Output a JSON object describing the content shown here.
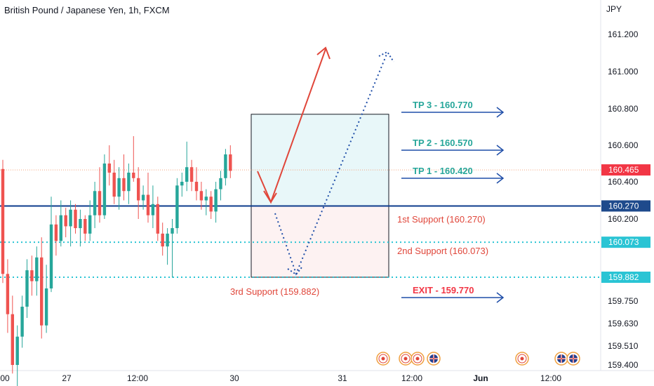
{
  "header": {
    "title": "British Pound / Japanese Yen, 1h, FXCM"
  },
  "chart_data": {
    "type": "candlestick",
    "currency": "JPY",
    "y_ticks": [
      "161.200",
      "161.000",
      "160.800",
      "160.600",
      "160.400",
      "160.200",
      "159.750",
      "159.630",
      "159.510",
      "159.400"
    ],
    "x_ticks": [
      "00",
      "27",
      "12:00",
      "30",
      "31",
      "12:00",
      "Jun",
      "12:00"
    ],
    "last_price": "160.465",
    "price_tags": [
      {
        "label": "160.465",
        "color": "#f23645"
      },
      {
        "label": "160.270",
        "color": "#1e4a8c"
      },
      {
        "label": "160.073",
        "color": "#2ac4d4"
      },
      {
        "label": "159.882",
        "color": "#2ac4d4"
      }
    ],
    "levels": [
      {
        "name": "1st Support",
        "value": 160.27,
        "label": "1st Support (160.270)",
        "color": "#0d3b8c",
        "style": "solid"
      },
      {
        "name": "2nd Support",
        "value": 160.073,
        "label": "2nd Support (160.073)",
        "color": "#2ac4d4",
        "style": "dotted"
      },
      {
        "name": "3rd Support",
        "value": 159.882,
        "label": "3rd Support (159.882)",
        "color": "#2ac4d4",
        "style": "dotted"
      }
    ],
    "targets": [
      {
        "label": "TP 3 - 160.770",
        "value": 160.77,
        "color": "#26a69a"
      },
      {
        "label": "TP 2 - 160.570",
        "value": 160.57,
        "color": "#26a69a"
      },
      {
        "label": "TP 1 - 160.420",
        "value": 160.42,
        "color": "#26a69a"
      },
      {
        "label": "EXIT - 159.770",
        "value": 159.77,
        "color": "#f23645"
      }
    ],
    "candles": [
      {
        "o": 160.47,
        "h": 160.52,
        "l": 159.85,
        "c": 159.9
      },
      {
        "o": 159.9,
        "h": 159.98,
        "l": 159.58,
        "c": 159.68
      },
      {
        "o": 159.68,
        "h": 159.78,
        "l": 159.35,
        "c": 159.4
      },
      {
        "o": 159.4,
        "h": 159.62,
        "l": 159.22,
        "c": 159.56
      },
      {
        "o": 159.56,
        "h": 159.78,
        "l": 159.5,
        "c": 159.72
      },
      {
        "o": 159.72,
        "h": 159.98,
        "l": 159.66,
        "c": 159.92
      },
      {
        "o": 159.92,
        "h": 160.0,
        "l": 159.78,
        "c": 159.86
      },
      {
        "o": 159.86,
        "h": 160.05,
        "l": 159.78,
        "c": 159.99
      },
      {
        "o": 159.99,
        "h": 160.1,
        "l": 159.55,
        "c": 159.62
      },
      {
        "o": 159.62,
        "h": 159.95,
        "l": 159.58,
        "c": 159.82
      },
      {
        "o": 159.82,
        "h": 160.32,
        "l": 159.8,
        "c": 160.17
      },
      {
        "o": 160.17,
        "h": 160.22,
        "l": 160.0,
        "c": 160.08
      },
      {
        "o": 160.08,
        "h": 160.3,
        "l": 160.05,
        "c": 160.22
      },
      {
        "o": 160.22,
        "h": 160.26,
        "l": 160.1,
        "c": 160.16
      },
      {
        "o": 160.16,
        "h": 160.3,
        "l": 160.05,
        "c": 160.25
      },
      {
        "o": 160.25,
        "h": 160.28,
        "l": 160.12,
        "c": 160.15
      },
      {
        "o": 160.15,
        "h": 160.25,
        "l": 160.05,
        "c": 160.2
      },
      {
        "o": 160.2,
        "h": 160.22,
        "l": 160.08,
        "c": 160.12
      },
      {
        "o": 160.12,
        "h": 160.3,
        "l": 160.08,
        "c": 160.22
      },
      {
        "o": 160.22,
        "h": 160.4,
        "l": 160.15,
        "c": 160.35
      },
      {
        "o": 160.35,
        "h": 160.48,
        "l": 160.18,
        "c": 160.22
      },
      {
        "o": 160.22,
        "h": 160.55,
        "l": 160.2,
        "c": 160.5
      },
      {
        "o": 160.5,
        "h": 160.6,
        "l": 160.38,
        "c": 160.45
      },
      {
        "o": 160.45,
        "h": 160.52,
        "l": 160.28,
        "c": 160.32
      },
      {
        "o": 160.32,
        "h": 160.48,
        "l": 160.25,
        "c": 160.42
      },
      {
        "o": 160.42,
        "h": 160.55,
        "l": 160.3,
        "c": 160.35
      },
      {
        "o": 160.35,
        "h": 160.5,
        "l": 160.28,
        "c": 160.45
      },
      {
        "o": 160.45,
        "h": 160.65,
        "l": 160.4,
        "c": 160.42
      },
      {
        "o": 160.42,
        "h": 160.48,
        "l": 160.2,
        "c": 160.3
      },
      {
        "o": 160.3,
        "h": 160.38,
        "l": 160.25,
        "c": 160.33
      },
      {
        "o": 160.33,
        "h": 160.45,
        "l": 160.18,
        "c": 160.22
      },
      {
        "o": 160.22,
        "h": 160.38,
        "l": 160.15,
        "c": 160.28
      },
      {
        "o": 160.28,
        "h": 160.32,
        "l": 160.08,
        "c": 160.12
      },
      {
        "o": 160.12,
        "h": 160.18,
        "l": 160.0,
        "c": 160.05
      },
      {
        "o": 160.05,
        "h": 160.15,
        "l": 159.95,
        "c": 160.12
      },
      {
        "o": 160.12,
        "h": 160.2,
        "l": 159.88,
        "c": 160.15
      },
      {
        "o": 160.15,
        "h": 160.42,
        "l": 160.12,
        "c": 160.38
      },
      {
        "o": 160.38,
        "h": 160.45,
        "l": 160.32,
        "c": 160.4
      },
      {
        "o": 160.4,
        "h": 160.62,
        "l": 160.35,
        "c": 160.48
      },
      {
        "o": 160.48,
        "h": 160.52,
        "l": 160.35,
        "c": 160.4
      },
      {
        "o": 160.4,
        "h": 160.48,
        "l": 160.3,
        "c": 160.35
      },
      {
        "o": 160.35,
        "h": 160.4,
        "l": 160.25,
        "c": 160.3
      },
      {
        "o": 160.3,
        "h": 160.36,
        "l": 160.22,
        "c": 160.32
      },
      {
        "o": 160.32,
        "h": 160.35,
        "l": 160.2,
        "c": 160.24
      },
      {
        "o": 160.24,
        "h": 160.4,
        "l": 160.18,
        "c": 160.36
      },
      {
        "o": 160.36,
        "h": 160.46,
        "l": 160.3,
        "c": 160.42
      },
      {
        "o": 160.42,
        "h": 160.58,
        "l": 160.38,
        "c": 160.55
      },
      {
        "o": 160.55,
        "h": 160.6,
        "l": 160.42,
        "c": 160.46
      }
    ]
  }
}
